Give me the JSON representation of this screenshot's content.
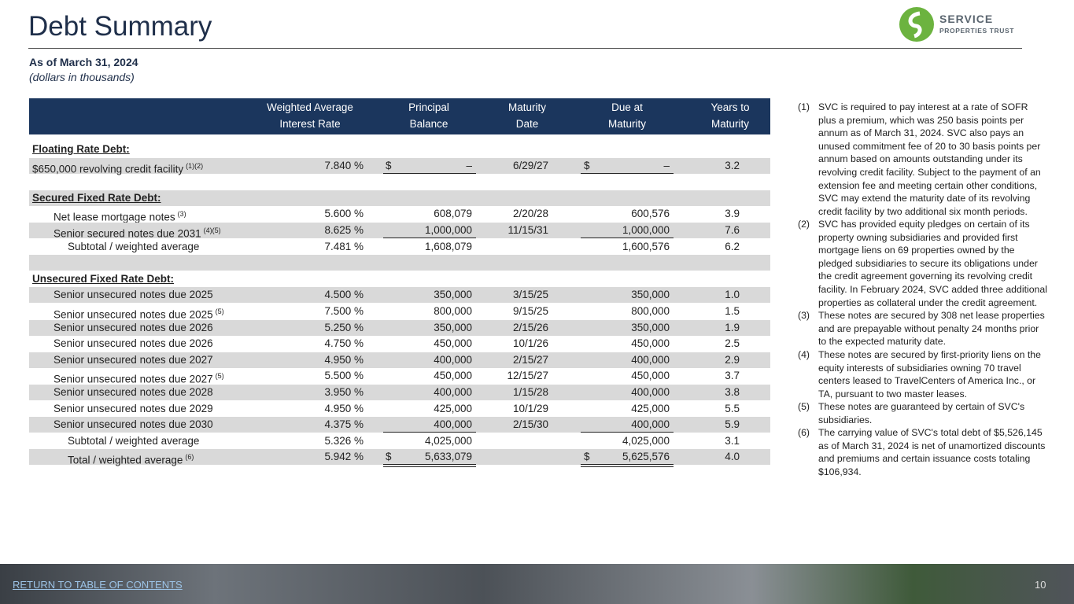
{
  "header": {
    "title": "Debt Summary",
    "subtitle": "As of March 31, 2024",
    "unit_note": "(dollars in thousands)",
    "logo_line1": "SERVICE",
    "logo_line2": "PROPERTIES TRUST"
  },
  "table": {
    "headers": [
      [
        "Weighted Average",
        "Interest Rate"
      ],
      [
        "Principal",
        "Balance"
      ],
      [
        "Maturity",
        "Date"
      ],
      [
        "Due at",
        "Maturity"
      ],
      [
        "Years to",
        "Maturity"
      ]
    ],
    "rows": [
      {
        "label": "Floating Rate Debt:"
      },
      {
        "label": "$650,000 revolving credit facility",
        "note": "(1)(2)",
        "rate": "7.840 %",
        "principal_sign": "$",
        "principal": "–",
        "date": "6/29/27",
        "due_sign": "$",
        "due": "–",
        "years": "3.2"
      },
      {
        "label": "Secured Fixed Rate Debt:"
      },
      {
        "label": "Net lease mortgage notes",
        "note": "(3)",
        "rate": "5.600 %",
        "principal": "608,079",
        "date": "2/20/28",
        "due": "600,576",
        "years": "3.9"
      },
      {
        "label": "Senior secured notes due 2031",
        "note": "(4)(5)",
        "rate": "8.625 %",
        "principal": "1,000,000",
        "date": "11/15/31",
        "due": "1,000,000",
        "years": "7.6"
      },
      {
        "label": "Subtotal / weighted average",
        "rate": "7.481 %",
        "principal": "1,608,079",
        "due": "1,600,576",
        "years": "6.2"
      },
      {
        "label": "Unsecured Fixed Rate Debt:"
      },
      {
        "label": "Senior unsecured notes due 2025",
        "rate": "4.500 %",
        "principal": "350,000",
        "date": "3/15/25",
        "due": "350,000",
        "years": "1.0"
      },
      {
        "label": "Senior unsecured notes due 2025",
        "note": "(5)",
        "rate": "7.500 %",
        "principal": "800,000",
        "date": "9/15/25",
        "due": "800,000",
        "years": "1.5"
      },
      {
        "label": "Senior unsecured notes due 2026",
        "rate": "5.250 %",
        "principal": "350,000",
        "date": "2/15/26",
        "due": "350,000",
        "years": "1.9"
      },
      {
        "label": "Senior unsecured notes due 2026",
        "rate": "4.750 %",
        "principal": "450,000",
        "date": "10/1/26",
        "due": "450,000",
        "years": "2.5"
      },
      {
        "label": "Senior unsecured notes due 2027",
        "rate": "4.950 %",
        "principal": "400,000",
        "date": "2/15/27",
        "due": "400,000",
        "years": "2.9"
      },
      {
        "label": "Senior unsecured notes due 2027",
        "note": "(5)",
        "rate": "5.500 %",
        "principal": "450,000",
        "date": "12/15/27",
        "due": "450,000",
        "years": "3.7"
      },
      {
        "label": "Senior unsecured notes due 2028",
        "rate": "3.950 %",
        "principal": "400,000",
        "date": "1/15/28",
        "due": "400,000",
        "years": "3.8"
      },
      {
        "label": "Senior unsecured notes due 2029",
        "rate": "4.950 %",
        "principal": "425,000",
        "date": "10/1/29",
        "due": "425,000",
        "years": "5.5"
      },
      {
        "label": "Senior unsecured notes due 2030",
        "rate": "4.375 %",
        "principal": "400,000",
        "date": "2/15/30",
        "due": "400,000",
        "years": "5.9"
      },
      {
        "label": "Subtotal / weighted average",
        "rate": "5.326 %",
        "principal": "4,025,000",
        "due": "4,025,000",
        "years": "3.1"
      },
      {
        "label": "Total / weighted average",
        "note": "(6)",
        "rate": "5.942 %",
        "principal_sign": "$",
        "principal": "5,633,079",
        "due_sign": "$",
        "due": "5,625,576",
        "years": "4.0"
      }
    ]
  },
  "footnotes": [
    {
      "num": "(1)",
      "text": "SVC is required to pay interest at a rate of SOFR plus a premium, which was 250 basis points per annum as of March 31, 2024. SVC also pays an unused commitment fee of 20 to 30 basis points per annum based on amounts outstanding under its revolving credit facility. Subject to the payment of an extension fee and meeting certain other conditions, SVC may extend the maturity date of its revolving credit facility by two additional six month periods."
    },
    {
      "num": "(2)",
      "text": "SVC has provided equity pledges on certain of its property owning subsidiaries and provided first mortgage liens on 69 properties owned by the pledged subsidiaries to secure its obligations under the credit agreement governing its revolving credit facility. In February 2024, SVC added three additional properties as collateral under the credit agreement."
    },
    {
      "num": "(3)",
      "text": "These notes are secured by 308 net lease properties and are prepayable without penalty 24 months prior to the expected maturity date."
    },
    {
      "num": "(4)",
      "text": "These notes are secured by first-priority liens on the equity interests of subsidiaries owning 70 travel centers leased to TravelCenters of America Inc., or TA, pursuant to two master leases."
    },
    {
      "num": "(5)",
      "text": "These notes are guaranteed by certain of SVC's subsidiaries."
    },
    {
      "num": "(6)",
      "text": "The carrying value of SVC's total debt of $5,526,145 as of March 31, 2024 is net of unamortized discounts and premiums and certain issuance costs totaling $106,934."
    }
  ],
  "footer": {
    "link": "RETURN TO TABLE OF CONTENTS",
    "page": "10"
  }
}
